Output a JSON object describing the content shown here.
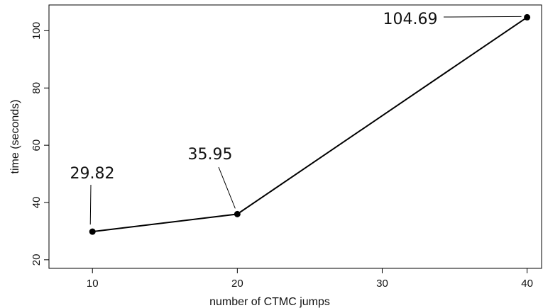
{
  "chart_data": {
    "type": "line",
    "x": [
      10,
      20,
      40
    ],
    "y": [
      29.82,
      35.95,
      104.69
    ],
    "point_labels": [
      "29.82",
      "35.95",
      "104.69"
    ],
    "xlabel": "number of CTMC jumps",
    "ylabel": "time (seconds)",
    "xlim": [
      7,
      41
    ],
    "ylim": [
      17,
      109
    ],
    "xticks": [
      10,
      20,
      30,
      40
    ],
    "yticks": [
      20,
      40,
      60,
      80,
      100
    ],
    "grid": false,
    "line_color": "#000000",
    "marker": "filled-circle"
  }
}
